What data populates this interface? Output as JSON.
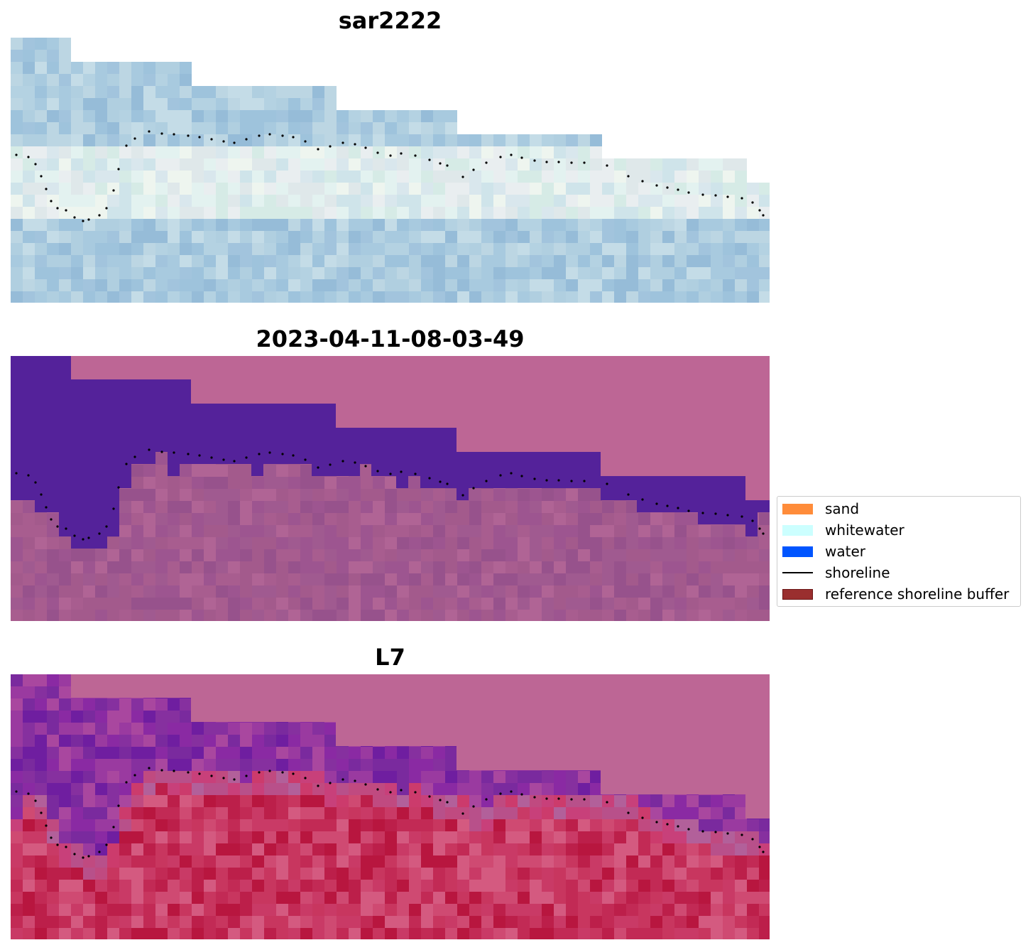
{
  "panels": [
    {
      "title": "sar2222",
      "kind": "rgb-composite"
    },
    {
      "title": "2023-04-11-08-03-49",
      "kind": "classification"
    },
    {
      "title": "L7",
      "kind": "index"
    }
  ],
  "legend": {
    "items": [
      {
        "label": "sand",
        "type": "patch",
        "color": "#ff8c3a"
      },
      {
        "label": "whitewater",
        "type": "patch",
        "color": "#ccffff"
      },
      {
        "label": "water",
        "type": "patch",
        "color": "#0055ff"
      },
      {
        "label": "shoreline",
        "type": "line",
        "color": "#000000"
      },
      {
        "label": "reference shoreline buffer",
        "type": "patch",
        "color": "#9a2f2f",
        "edge": "#7a1a1a"
      }
    ]
  },
  "colors": {
    "nodata_pink": "#bd6695",
    "water_purple": "#54229a",
    "sar_light_blue": "#a9cbdc",
    "l7_red": "#c8365f"
  }
}
